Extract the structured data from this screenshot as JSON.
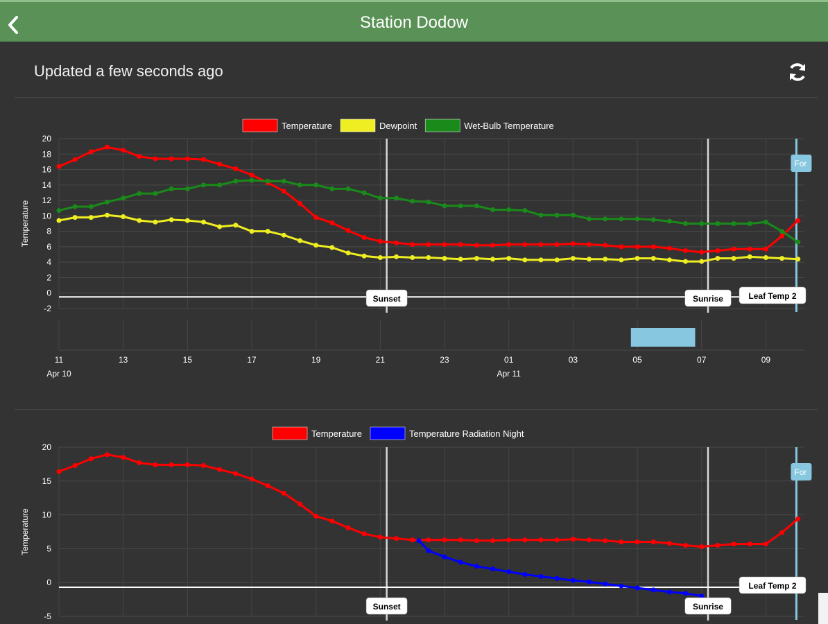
{
  "header": {
    "title": "Station Dodow",
    "back_icon": "chevron-left-icon"
  },
  "status": {
    "updated_text": "Updated a few seconds ago",
    "refresh_icon": "refresh-icon"
  },
  "chart_data": [
    {
      "type": "line",
      "ylabel": "Temperature",
      "ylim": [
        -2,
        20
      ],
      "yticks": [
        -2,
        0,
        2,
        4,
        6,
        8,
        10,
        12,
        14,
        16,
        18,
        20
      ],
      "x_hours": [
        11,
        11.5,
        12,
        12.5,
        13,
        13.5,
        14,
        14.5,
        15,
        15.5,
        16,
        16.5,
        17,
        17.5,
        18,
        18.5,
        19,
        19.5,
        20,
        20.5,
        21,
        21.5,
        22,
        22.5,
        23,
        23.5,
        24,
        24.5,
        25,
        25.5,
        26,
        26.5,
        27,
        27.5,
        28,
        28.5,
        29,
        29.5,
        30,
        30.5,
        31,
        31.5,
        32,
        32.5,
        33,
        33.5,
        34
      ],
      "xticks": [
        "11",
        "13",
        "15",
        "17",
        "19",
        "21",
        "23",
        "01",
        "03",
        "05",
        "07",
        "09"
      ],
      "xdates": [
        "Apr 10",
        "Apr 11"
      ],
      "legend": [
        "Temperature",
        "Dewpoint",
        "Wet-Bulb Temperature"
      ],
      "series": [
        {
          "name": "Temperature",
          "color": "#ff0000",
          "values": [
            16.4,
            17.3,
            18.3,
            18.9,
            18.5,
            17.7,
            17.4,
            17.4,
            17.4,
            17.3,
            16.7,
            16.1,
            15.3,
            14.3,
            13.2,
            11.6,
            9.8,
            9.1,
            8.1,
            7.2,
            6.7,
            6.5,
            6.3,
            6.3,
            6.3,
            6.3,
            6.2,
            6.2,
            6.3,
            6.3,
            6.3,
            6.3,
            6.4,
            6.3,
            6.2,
            6.0,
            6.0,
            6.0,
            5.8,
            5.5,
            5.3,
            5.5,
            5.7,
            5.7,
            5.7,
            7.4,
            9.4
          ]
        },
        {
          "name": "Dewpoint",
          "color": "#eeee22",
          "values": [
            9.4,
            9.8,
            9.8,
            10.1,
            9.9,
            9.4,
            9.2,
            9.5,
            9.4,
            9.2,
            8.6,
            8.8,
            8.0,
            8.0,
            7.5,
            6.8,
            6.2,
            5.9,
            5.2,
            4.8,
            4.6,
            4.7,
            4.6,
            4.6,
            4.5,
            4.4,
            4.5,
            4.4,
            4.5,
            4.3,
            4.3,
            4.3,
            4.5,
            4.4,
            4.4,
            4.3,
            4.5,
            4.5,
            4.3,
            4.1,
            4.1,
            4.5,
            4.5,
            4.7,
            4.6,
            4.5,
            4.4
          ]
        },
        {
          "name": "Wet-Bulb Temperature",
          "color": "#1a8a1a",
          "values": [
            10.7,
            11.2,
            11.2,
            11.8,
            12.3,
            12.9,
            12.9,
            13.5,
            13.5,
            14.0,
            14.0,
            14.5,
            14.6,
            14.5,
            14.5,
            14.0,
            14.0,
            13.5,
            13.5,
            13.0,
            12.3,
            12.3,
            11.9,
            11.8,
            11.3,
            11.3,
            11.3,
            10.8,
            10.8,
            10.7,
            10.1,
            10.1,
            10.1,
            9.6,
            9.6,
            9.6,
            9.6,
            9.5,
            9.3,
            9.0,
            9.0,
            9.0,
            9.0,
            9.0,
            9.2,
            8.0,
            6.6
          ]
        }
      ],
      "annotations": {
        "hline_value": -0.5,
        "sunset_hour": 21.2,
        "sunrise_hour": 31.2,
        "now_hour": 33.95,
        "sunset_label": "Sunset",
        "sunrise_label": "Sunrise",
        "leaf_label": "Leaf Temp 2",
        "forecast_label": "For",
        "forecast_band_hours": [
          28.8,
          30.8
        ]
      }
    },
    {
      "type": "line",
      "ylabel": "Temperature",
      "ylim": [
        -5,
        20
      ],
      "yticks": [
        -5,
        0,
        5,
        10,
        15,
        20
      ],
      "legend": [
        "Temperature",
        "Temperature Radiation Night"
      ],
      "series": [
        {
          "name": "Temperature",
          "color": "#ff0000",
          "ref": "chart0.Temperature"
        },
        {
          "name": "Temperature Radiation Night",
          "color": "#0000ff",
          "x_hours": [
            22.2,
            22.5,
            23,
            23.5,
            24,
            24.5,
            25,
            25.5,
            26,
            26.5,
            27,
            27.5,
            28,
            28.5,
            29,
            29.5,
            30,
            30.5,
            31
          ],
          "values": [
            6.2,
            4.7,
            3.8,
            3.0,
            2.4,
            2.0,
            1.6,
            1.2,
            0.9,
            0.6,
            0.3,
            0.1,
            -0.2,
            -0.5,
            -0.8,
            -1.1,
            -1.4,
            -1.6,
            -2.0
          ]
        }
      ],
      "annotations": {
        "hline_value": -0.7,
        "sunset_hour": 21.2,
        "sunrise_hour": 31.2,
        "now_hour": 33.95,
        "sunset_label": "Sunset",
        "sunrise_label": "Sunrise",
        "leaf_label": "Leaf Temp 2",
        "forecast_label": "For"
      }
    }
  ]
}
